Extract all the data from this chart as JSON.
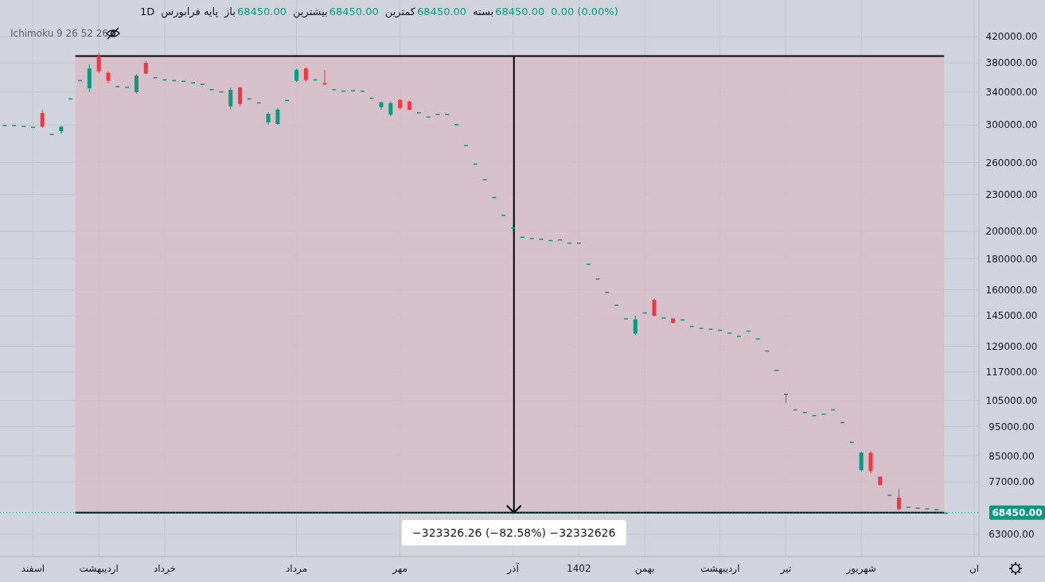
{
  "chart_data": {
    "type": "candlestick",
    "annotations": [
      "1D",
      "پایه فرابورس",
      "باز",
      "68450.00",
      "بیشترین",
      "68450.00",
      "کمترین",
      "68450.00",
      "بسته",
      "68450.00",
      "0.00 (0.00%)",
      "Ichimoku 9 26 52 26",
      "−323326.26 (−82.58%) −32332626"
    ],
    "categories": [
      null,
      null,
      null,
      "اسفند",
      null,
      null,
      null,
      null,
      null,
      null,
      "اردیبهشت",
      null,
      null,
      null,
      null,
      null,
      null,
      "خرداد",
      null,
      null,
      null,
      null,
      null,
      null,
      null,
      null,
      null,
      null,
      null,
      null,
      null,
      "مرداد",
      null,
      null,
      null,
      null,
      null,
      null,
      null,
      null,
      null,
      null,
      "مهر",
      null,
      null,
      null,
      null,
      null,
      null,
      null,
      null,
      null,
      null,
      null,
      "آذر",
      null,
      null,
      null,
      null,
      null,
      null,
      "1402",
      null,
      null,
      null,
      null,
      null,
      null,
      "بهمن",
      null,
      null,
      null,
      null,
      null,
      null,
      null,
      "اردیبهشت",
      null,
      null,
      null,
      null,
      null,
      null,
      "تیر",
      null,
      null,
      null,
      null,
      null,
      null,
      null,
      "شهریور",
      null,
      null,
      null,
      null,
      null,
      null,
      null,
      null,
      null,
      null,
      null,
      "ان"
    ],
    "ohlc": [
      [
        300000,
        300000,
        300000,
        300000
      ],
      [
        300000,
        300000,
        300000,
        300000
      ],
      [
        299000,
        299000,
        299000,
        299000
      ],
      [
        298000,
        298000,
        298000,
        298000
      ],
      [
        314000,
        318000,
        297000,
        298000
      ],
      [
        290000,
        290000,
        290000,
        290000
      ],
      [
        293000,
        299000,
        290000,
        298000
      ],
      [
        332000,
        332000,
        332000,
        332000
      ],
      [
        356000,
        356000,
        356000,
        356000
      ],
      [
        345000,
        378000,
        340000,
        372000
      ],
      [
        390000,
        395000,
        365000,
        368000
      ],
      [
        366000,
        368000,
        352000,
        355000
      ],
      [
        348000,
        348000,
        348000,
        348000
      ],
      [
        347000,
        347000,
        347000,
        347000
      ],
      [
        340000,
        364000,
        338000,
        362000
      ],
      [
        380000,
        383000,
        364000,
        365000
      ],
      [
        360000,
        360000,
        360000,
        360000
      ],
      [
        357000,
        357000,
        357000,
        357000
      ],
      [
        356000,
        356000,
        356000,
        356000
      ],
      [
        355000,
        355000,
        355000,
        355000
      ],
      [
        353000,
        353000,
        353000,
        353000
      ],
      [
        351000,
        351000,
        351000,
        351000
      ],
      [
        344000,
        344000,
        344000,
        344000
      ],
      [
        341000,
        341000,
        341000,
        341000
      ],
      [
        322000,
        346000,
        318000,
        343000
      ],
      [
        346000,
        347000,
        322000,
        325000
      ],
      [
        332000,
        332000,
        332000,
        332000
      ],
      [
        327000,
        327000,
        327000,
        327000
      ],
      [
        303000,
        315000,
        300000,
        313000
      ],
      [
        301000,
        320000,
        300000,
        318000
      ],
      [
        330000,
        330000,
        330000,
        330000
      ],
      [
        355000,
        372000,
        353000,
        370000
      ],
      [
        372000,
        374000,
        354000,
        356000
      ],
      [
        357000,
        357000,
        357000,
        357000
      ],
      [
        352000,
        370000,
        349000,
        350000
      ],
      [
        344000,
        344000,
        344000,
        344000
      ],
      [
        342000,
        342000,
        342000,
        342000
      ],
      [
        342500,
        342500,
        342500,
        342500
      ],
      [
        342000,
        342000,
        342000,
        342000
      ],
      [
        333000,
        333000,
        333000,
        333000
      ],
      [
        321000,
        328000,
        318000,
        327000
      ],
      [
        312000,
        328000,
        310000,
        326000
      ],
      [
        330000,
        331000,
        318000,
        320000
      ],
      [
        328000,
        329000,
        317000,
        318000
      ],
      [
        315000,
        315000,
        315000,
        315000
      ],
      [
        310000,
        310000,
        310000,
        310000
      ],
      [
        313000,
        313000,
        313000,
        313000
      ],
      [
        313000,
        313000,
        313000,
        313000
      ],
      [
        301000,
        301000,
        301000,
        301000
      ],
      [
        278000,
        278000,
        278000,
        278000
      ],
      [
        259000,
        259000,
        259000,
        259000
      ],
      [
        244000,
        244000,
        244000,
        244000
      ],
      [
        228000,
        228000,
        228000,
        228000
      ],
      [
        213000,
        213000,
        213000,
        213000
      ],
      [
        203000,
        205000,
        200000,
        203000
      ],
      [
        196000,
        196000,
        196000,
        196000
      ],
      [
        195000,
        195000,
        195000,
        195000
      ],
      [
        194500,
        194500,
        194500,
        194500
      ],
      [
        193500,
        193500,
        193500,
        193500
      ],
      [
        194000,
        194000,
        194000,
        194000
      ],
      [
        191600,
        191600,
        191600,
        191600
      ],
      [
        191600,
        191600,
        191600,
        191600
      ],
      [
        176800,
        176800,
        176800,
        176800
      ],
      [
        167100,
        167100,
        167100,
        167100
      ],
      [
        158800,
        158800,
        158800,
        158800
      ],
      [
        151300,
        151300,
        151300,
        151300
      ],
      [
        143600,
        143600,
        143600,
        143600
      ],
      [
        135500,
        145000,
        134500,
        143000
      ],
      [
        146900,
        146900,
        146900,
        146900
      ],
      [
        154000,
        155000,
        144500,
        145000
      ],
      [
        144000,
        144000,
        144000,
        144000
      ],
      [
        143500,
        143500,
        141000,
        141000
      ],
      [
        143000,
        143000,
        143000,
        143000
      ],
      [
        139500,
        139500,
        139500,
        139500
      ],
      [
        138500,
        138500,
        138500,
        138500
      ],
      [
        138000,
        138000,
        138000,
        138000
      ],
      [
        137500,
        137500,
        137500,
        137500
      ],
      [
        136000,
        136000,
        136000,
        136000
      ],
      [
        134300,
        134300,
        134300,
        134300
      ],
      [
        137000,
        137000,
        137000,
        137000
      ],
      [
        133000,
        133000,
        133000,
        133000
      ],
      [
        127000,
        127000,
        127000,
        127000
      ],
      [
        118000,
        118000,
        118000,
        118000
      ],
      [
        107700,
        107700,
        104000,
        107700
      ],
      [
        101500,
        101500,
        101500,
        101500
      ],
      [
        100500,
        100500,
        100500,
        100500
      ],
      [
        99300,
        99300,
        99300,
        99300
      ],
      [
        99850,
        99850,
        99850,
        99850
      ],
      [
        101500,
        101500,
        101500,
        101500
      ],
      [
        96700,
        96700,
        96700,
        96700
      ],
      [
        89700,
        89700,
        89700,
        89700
      ],
      [
        80500,
        86500,
        80000,
        86000
      ],
      [
        86000,
        86500,
        79500,
        80200
      ],
      [
        78500,
        78500,
        76000,
        76000
      ],
      [
        73300,
        73300,
        73300,
        73300
      ],
      [
        72500,
        75000,
        69000,
        69400
      ],
      [
        70000,
        70000,
        70000,
        70000
      ],
      [
        69800,
        69800,
        69800,
        69800
      ],
      [
        69600,
        69600,
        69600,
        69600
      ],
      [
        69400,
        69400,
        69400,
        69400
      ],
      [
        68450,
        68450,
        68450,
        68450
      ],
      null,
      null,
      null
    ],
    "colors": [
      "#089981",
      "#089981",
      "#089981",
      "#089981",
      "#f23645",
      "#089981",
      "#089981",
      "#089981",
      "#089981",
      "#089981",
      "#f23645",
      "#f23645",
      "#089981",
      "#089981",
      "#089981",
      "#f23645",
      "#089981",
      "#089981",
      "#089981",
      "#089981",
      "#089981",
      "#089981",
      "#089981",
      "#089981",
      "#089981",
      "#f23645",
      "#089981",
      "#089981",
      "#089981",
      "#089981",
      "#089981",
      "#089981",
      "#f23645",
      "#089981",
      "#f23645",
      "#089981",
      "#089981",
      "#089981",
      "#089981",
      "#089981",
      "#089981",
      "#089981",
      "#f23645",
      "#f23645",
      "#089981",
      "#089981",
      "#089981",
      "#089981",
      "#089981",
      "#089981",
      "#089981",
      "#089981",
      "#089981",
      "#089981",
      "#089981",
      "#089981",
      "#089981",
      "#089981",
      "#089981",
      "#089981",
      "#089981",
      "#089981",
      "#089981",
      "#089981",
      "#089981",
      "#089981",
      "#089981",
      "#089981",
      "#089981",
      "#f23645",
      "#089981",
      "#f23645",
      "#089981",
      "#089981",
      "#089981",
      "#089981",
      "#089981",
      "#089981",
      "#089981",
      "#089981",
      "#089981",
      "#089981",
      "#089981",
      "#089981",
      "#089981",
      "#089981",
      "#089981",
      "#089981",
      "#089981",
      "#089981",
      "#089981",
      "#089981",
      "#f23645",
      "#f23645",
      "#089981",
      "#f23645",
      "#089981",
      "#089981",
      "#089981",
      "#089981",
      "#089981",
      null,
      null,
      null
    ],
    "log": true,
    "grid": true,
    "ylim": [
      57900,
      483000
    ],
    "yticks": [
      {
        "value": 420000,
        "label": "420000.00"
      },
      {
        "value": 380000,
        "label": "380000.00"
      },
      {
        "value": 340000,
        "label": "340000.00"
      },
      {
        "value": 300000,
        "label": "300000.00"
      },
      {
        "value": 260000,
        "label": "260000.00"
      },
      {
        "value": 230000,
        "label": "230000.00"
      },
      {
        "value": 200000,
        "label": "200000.00"
      },
      {
        "value": 180000,
        "label": "180000.00"
      },
      {
        "value": 160000,
        "label": "160000.00"
      },
      {
        "value": 145000,
        "label": "145000.00"
      },
      {
        "value": 129000,
        "label": "129000.00"
      },
      {
        "value": 117000,
        "label": "117000.00"
      },
      {
        "value": 105000,
        "label": "105000.00"
      },
      {
        "value": 95000,
        "label": "95000.00"
      },
      {
        "value": 85000,
        "label": "85000.00"
      },
      {
        "value": 77000,
        "label": "77000.00"
      },
      {
        "value": 63000,
        "label": "63000.00"
      }
    ],
    "ref_lines": [
      {
        "axis": "y",
        "value": 68450,
        "label": "68450.00",
        "color": "#089981",
        "line_style": "dotted"
      }
    ],
    "bands": [
      {
        "axis": "y",
        "from": 68450,
        "to": 390000,
        "color": "#d7bcc5"
      }
    ]
  }
}
